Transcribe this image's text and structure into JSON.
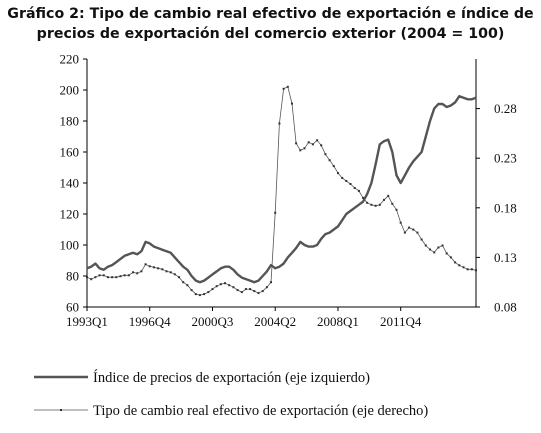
{
  "title_line1": "Gráfico 2: Tipo de cambio real efectivo de exportación e índice de",
  "title_line2": "precios de exportación del comercio exterior (2004 = 100)",
  "chart_data": {
    "type": "line",
    "x_start": "1993Q1",
    "x_tick_labels": [
      "1993Q1",
      "1996Q4",
      "2000Q3",
      "2004Q2",
      "2008Q1",
      "2011Q4"
    ],
    "y_left": {
      "min": 60,
      "max": 220,
      "ticks": [
        60,
        80,
        100,
        120,
        140,
        160,
        180,
        200,
        220
      ]
    },
    "y_right": {
      "min": 0.08,
      "max": 0.33,
      "ticks": [
        "0.08",
        "0.13",
        "0.18",
        "0.23",
        "0.28"
      ]
    },
    "legend_position": "bottom",
    "colors": {
      "series1": "#555555",
      "series2": "#555555",
      "axis": "#000000"
    },
    "series": [
      {
        "name": "Índice de precios de exportación (eje izquierdo)",
        "axis": "left",
        "style": "thick",
        "values": [
          85,
          86,
          88,
          85,
          84,
          86,
          87,
          89,
          91,
          93,
          94,
          95,
          94,
          96,
          102,
          101,
          99,
          98,
          97,
          96,
          95,
          92,
          89,
          86,
          84,
          80,
          77,
          76,
          77,
          79,
          81,
          83,
          85,
          86,
          86,
          84,
          81,
          79,
          78,
          77,
          76,
          77,
          80,
          83,
          87,
          85,
          86,
          88,
          92,
          95,
          98,
          102,
          100,
          99,
          99,
          100,
          104,
          107,
          108,
          110,
          112,
          116,
          120,
          122,
          124,
          126,
          128,
          133,
          140,
          152,
          165,
          167,
          168,
          160,
          145,
          140,
          145,
          150,
          154,
          157,
          160,
          170,
          180,
          188,
          191,
          191,
          189,
          190,
          192,
          196,
          195,
          194,
          194,
          195
        ]
      },
      {
        "name": "Tipo de cambio real efectivo de exportación (eje derecho)",
        "axis": "right",
        "style": "dotted",
        "values": [
          0.11,
          0.108,
          0.11,
          0.112,
          0.112,
          0.11,
          0.11,
          0.11,
          0.111,
          0.112,
          0.112,
          0.115,
          0.114,
          0.116,
          0.123,
          0.121,
          0.12,
          0.119,
          0.118,
          0.116,
          0.115,
          0.113,
          0.11,
          0.105,
          0.102,
          0.097,
          0.093,
          0.092,
          0.093,
          0.095,
          0.098,
          0.101,
          0.103,
          0.104,
          0.102,
          0.1,
          0.097,
          0.095,
          0.098,
          0.098,
          0.096,
          0.094,
          0.096,
          0.1,
          0.105,
          0.175,
          0.265,
          0.3,
          0.302,
          0.285,
          0.245,
          0.238,
          0.24,
          0.246,
          0.244,
          0.248,
          0.243,
          0.234,
          0.228,
          0.222,
          0.215,
          0.21,
          0.207,
          0.204,
          0.2,
          0.197,
          0.19,
          0.185,
          0.183,
          0.182,
          0.183,
          0.188,
          0.192,
          0.184,
          0.178,
          0.165,
          0.155,
          0.16,
          0.158,
          0.155,
          0.148,
          0.142,
          0.138,
          0.135,
          0.14,
          0.142,
          0.134,
          0.13,
          0.125,
          0.122,
          0.12,
          0.118,
          0.118,
          0.117
        ]
      }
    ]
  }
}
